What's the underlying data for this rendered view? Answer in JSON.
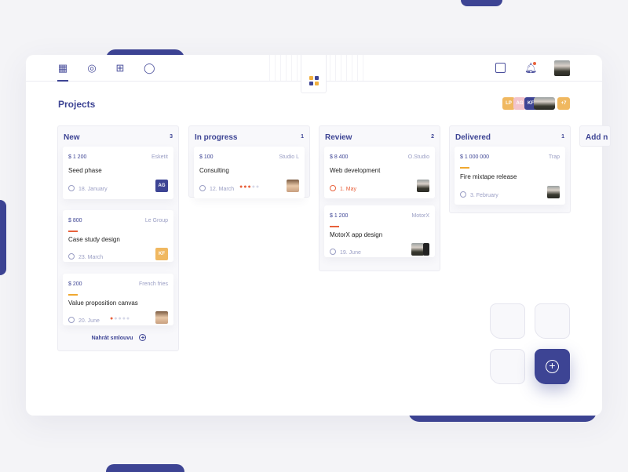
{
  "nav": {
    "items": [
      "board-icon",
      "team-icon",
      "settings-icon",
      "chat-icon"
    ]
  },
  "header": {
    "icons": [
      "calendar-note-icon",
      "bell-icon",
      "user-avatar"
    ]
  },
  "page_title": "Projects",
  "team": {
    "members": [
      "LP",
      "AG",
      "KF"
    ],
    "more": "+7"
  },
  "columns": [
    {
      "title": "New",
      "count": "3",
      "cards": [
        {
          "amount": "$ 1 200",
          "client": "Esketit",
          "name": "Seed phase",
          "date": "18. January",
          "assignee": "AG"
        },
        {
          "amount": "$ 800",
          "client": "Le Group",
          "name": "Case study design",
          "date": "23. March",
          "assignee": "KF",
          "priority": "#e8613c"
        },
        {
          "amount": "$ 200",
          "client": "French fries",
          "name": "Value proposition canvas",
          "date": "20. June",
          "priority": "#f0a830",
          "progress": "1/5"
        }
      ],
      "action": "Nahrát smlouvu"
    },
    {
      "title": "In progress",
      "count": "1",
      "cards": [
        {
          "amount": "$ 100",
          "client": "Studio L",
          "name": "Consulting",
          "date": "12. March",
          "progress": "3/5"
        }
      ]
    },
    {
      "title": "Review",
      "count": "2",
      "cards": [
        {
          "amount": "$ 8 400",
          "client": "O.Studio",
          "name": "Web development",
          "date": "1. May",
          "overdue": true
        },
        {
          "amount": "$ 1 200",
          "client": "MotorX",
          "name": "MotorX app design",
          "date": "19. June",
          "priority": "#e8613c"
        }
      ]
    },
    {
      "title": "Delivered",
      "count": "1",
      "cards": [
        {
          "amount": "$ 1 000 000",
          "client": "Trap",
          "name": "Fire mixtape release",
          "date": "3. February",
          "priority": "#f0a830"
        }
      ]
    },
    {
      "title": "Add n"
    }
  ],
  "colors": {
    "primary": "#3d4494",
    "accent": "#f0b860",
    "danger": "#e8613c",
    "pink": "#f2c4cc"
  }
}
